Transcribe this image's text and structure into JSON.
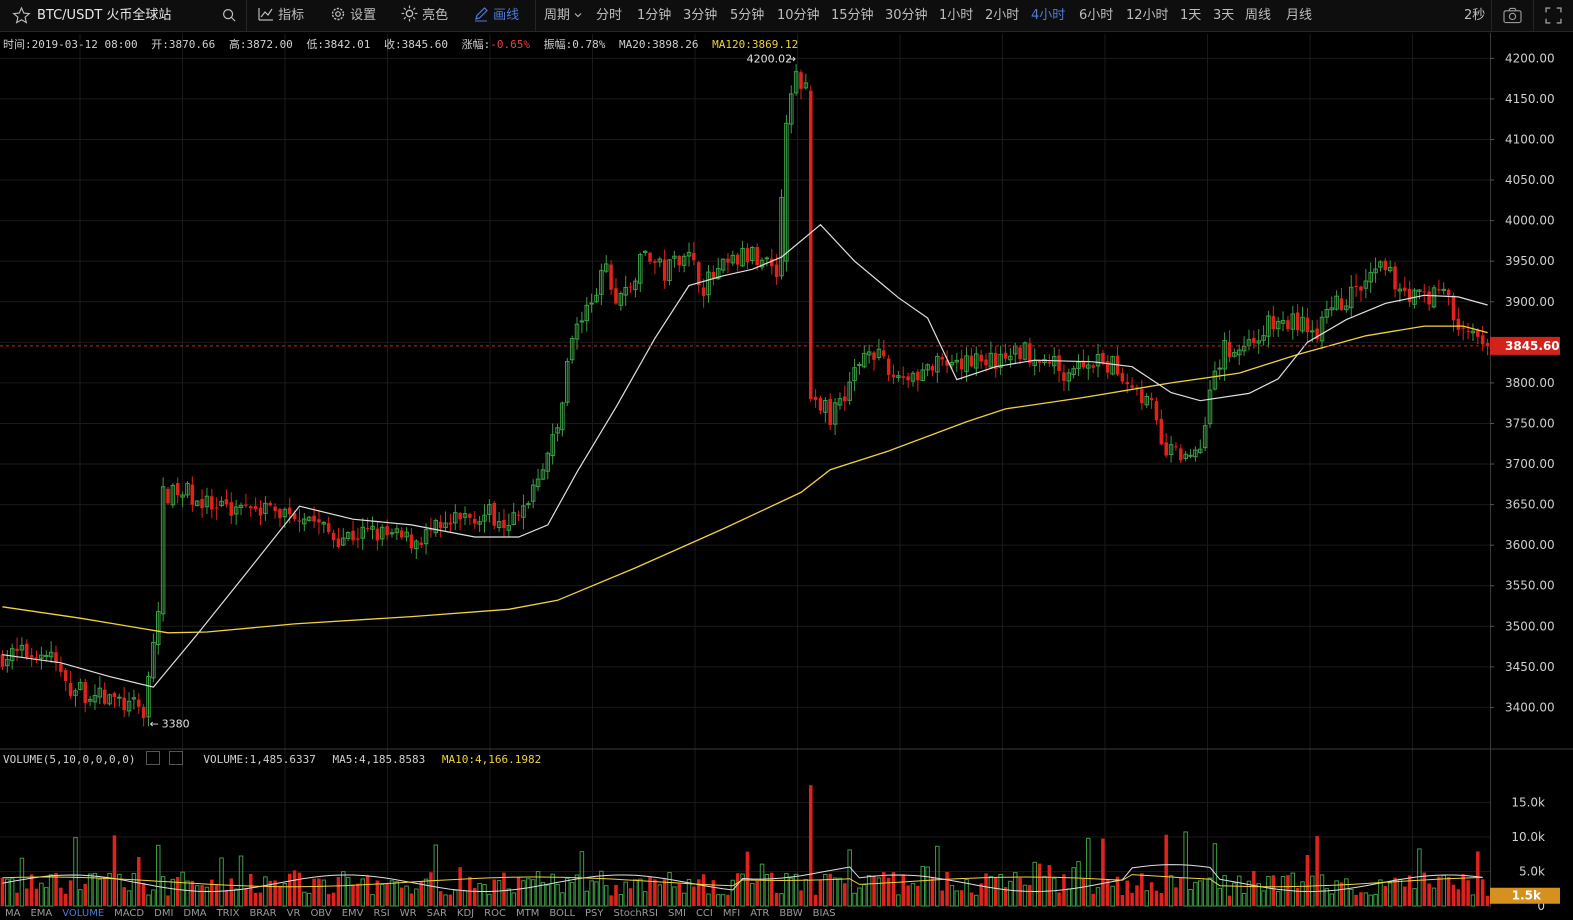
{
  "toolbar": {
    "symbol": "BTC/USDT 火币全球站",
    "indicators_label": "指标",
    "settings_label": "设置",
    "theme_label": "亮色",
    "draw_label": "画线",
    "period_label": "周期",
    "periods": [
      "分时",
      "1分钟",
      "3分钟",
      "5分钟",
      "10分钟",
      "15分钟",
      "30分钟",
      "1小时",
      "2小时",
      "4小时",
      "6小时",
      "12小时",
      "1天",
      "3天",
      "周线",
      "月线"
    ],
    "active_period": "4小时",
    "refresh": "2秒"
  },
  "info": {
    "time": "时间:2019-03-12 08:00",
    "open": "开:3870.66",
    "high": "高:3872.00",
    "low": "低:3842.01",
    "close": "收:3845.60",
    "change_label": "涨幅:",
    "change_value": "-0.65%",
    "amplitude": "振幅:0.78%",
    "ma20": "MA20:3898.26",
    "ma120": "MA120:3869.12"
  },
  "volume_info": {
    "title": "VOLUME(5,10,0,0,0,0)",
    "volume": "VOLUME:1,485.6337",
    "ma5": "MA5:4,185.8583",
    "ma10": "MA10:4,166.1982"
  },
  "indicator_tabs": [
    "MA",
    "EMA",
    "VOLUME",
    "MACD",
    "DMI",
    "DMA",
    "TRIX",
    "BRAR",
    "VR",
    "OBV",
    "EMV",
    "RSI",
    "WR",
    "SAR",
    "KDJ",
    "ROC",
    "MTM",
    "BOLL",
    "PSY",
    "StochRSI",
    "SMI",
    "CCI",
    "MFI",
    "ATR",
    "BBW",
    "BIAS"
  ],
  "active_indicator": "VOLUME",
  "colors": {
    "up": "#3c9d45",
    "down": "#e0221c",
    "ma_white": "#e0e0e0",
    "ma_yellow": "#f0d23c",
    "accent_blue": "#4d7bd6",
    "price_tag": "#d1231c",
    "vol_tag": "#d6901e"
  },
  "chart_data": {
    "type": "candlestick",
    "price_axis": {
      "min": 3350,
      "max": 4230,
      "ticks": [
        "4200.00",
        "4150.00",
        "4100.00",
        "4050.00",
        "4000.00",
        "3950.00",
        "3900.00",
        "3850.00",
        "3800.00",
        "3750.00",
        "3700.00",
        "3650.00",
        "3600.00",
        "3550.00",
        "3500.00",
        "3450.00",
        "3400.00"
      ]
    },
    "last_price": 3845.6,
    "last_price_label": "3845.60",
    "high_marker": "4200.02",
    "low_marker": "3380",
    "volume_axis": {
      "max": 20000,
      "ticks": [
        "15.0k",
        "10.0k",
        "5.0k",
        "0"
      ]
    },
    "last_volume_label": "1.5k",
    "anchors": [
      {
        "i": 0,
        "p": 3463
      },
      {
        "i": 8,
        "p": 3468
      },
      {
        "i": 10,
        "p": 3465
      },
      {
        "i": 13,
        "p": 3425
      },
      {
        "i": 22,
        "p": 3410
      },
      {
        "i": 29,
        "p": 3395
      },
      {
        "i": 30,
        "p": 3438
      },
      {
        "i": 32,
        "p": 3520
      },
      {
        "i": 33,
        "p": 3660
      },
      {
        "i": 38,
        "p": 3665
      },
      {
        "i": 44,
        "p": 3640
      },
      {
        "i": 51,
        "p": 3655
      },
      {
        "i": 56,
        "p": 3640
      },
      {
        "i": 62,
        "p": 3640
      },
      {
        "i": 68,
        "p": 3610
      },
      {
        "i": 76,
        "p": 3615
      },
      {
        "i": 84,
        "p": 3605
      },
      {
        "i": 90,
        "p": 3620
      },
      {
        "i": 98,
        "p": 3640
      },
      {
        "i": 106,
        "p": 3630
      },
      {
        "i": 110,
        "p": 3690
      },
      {
        "i": 114,
        "p": 3740
      },
      {
        "i": 116,
        "p": 3830
      },
      {
        "i": 118,
        "p": 3870
      },
      {
        "i": 121,
        "p": 3900
      },
      {
        "i": 124,
        "p": 3940
      },
      {
        "i": 126,
        "p": 3900
      },
      {
        "i": 129,
        "p": 3920
      },
      {
        "i": 132,
        "p": 3960
      },
      {
        "i": 136,
        "p": 3935
      },
      {
        "i": 140,
        "p": 3965
      },
      {
        "i": 144,
        "p": 3920
      },
      {
        "i": 148,
        "p": 3940
      },
      {
        "i": 152,
        "p": 3955
      },
      {
        "i": 156,
        "p": 3955
      },
      {
        "i": 159,
        "p": 3940
      },
      {
        "i": 161,
        "p": 4120
      },
      {
        "i": 163,
        "p": 4180
      },
      {
        "i": 166,
        "p": 4150
      },
      {
        "i": 167,
        "p": 3780
      },
      {
        "i": 170,
        "p": 3760
      },
      {
        "i": 174,
        "p": 3800
      },
      {
        "i": 178,
        "p": 3850
      },
      {
        "i": 182,
        "p": 3810
      },
      {
        "i": 186,
        "p": 3810
      },
      {
        "i": 192,
        "p": 3820
      },
      {
        "i": 196,
        "p": 3815
      },
      {
        "i": 200,
        "p": 3835
      },
      {
        "i": 204,
        "p": 3825
      },
      {
        "i": 210,
        "p": 3840
      },
      {
        "i": 214,
        "p": 3830
      },
      {
        "i": 218,
        "p": 3815
      },
      {
        "i": 222,
        "p": 3825
      },
      {
        "i": 228,
        "p": 3820
      },
      {
        "i": 232,
        "p": 3800
      },
      {
        "i": 236,
        "p": 3770
      },
      {
        "i": 238,
        "p": 3720
      },
      {
        "i": 242,
        "p": 3710
      },
      {
        "i": 246,
        "p": 3720
      },
      {
        "i": 248,
        "p": 3800
      },
      {
        "i": 251,
        "p": 3840
      },
      {
        "i": 256,
        "p": 3850
      },
      {
        "i": 260,
        "p": 3870
      },
      {
        "i": 266,
        "p": 3875
      },
      {
        "i": 270,
        "p": 3865
      },
      {
        "i": 274,
        "p": 3895
      },
      {
        "i": 276,
        "p": 3905
      },
      {
        "i": 280,
        "p": 3920
      },
      {
        "i": 283,
        "p": 3940
      },
      {
        "i": 286,
        "p": 3925
      },
      {
        "i": 290,
        "p": 3905
      },
      {
        "i": 294,
        "p": 3910
      },
      {
        "i": 296,
        "p": 3920
      },
      {
        "i": 298,
        "p": 3880
      },
      {
        "i": 301,
        "p": 3860
      },
      {
        "i": 304,
        "p": 3848
      }
    ],
    "ma_white": [
      {
        "i": 0,
        "p": 3465
      },
      {
        "i": 12,
        "p": 3455
      },
      {
        "i": 22,
        "p": 3438
      },
      {
        "i": 31,
        "p": 3425
      },
      {
        "i": 40,
        "p": 3490
      },
      {
        "i": 50,
        "p": 3565
      },
      {
        "i": 61,
        "p": 3648
      },
      {
        "i": 72,
        "p": 3632
      },
      {
        "i": 84,
        "p": 3625
      },
      {
        "i": 97,
        "p": 3610
      },
      {
        "i": 106,
        "p": 3610
      },
      {
        "i": 112,
        "p": 3625
      },
      {
        "i": 118,
        "p": 3690
      },
      {
        "i": 126,
        "p": 3770
      },
      {
        "i": 134,
        "p": 3855
      },
      {
        "i": 141,
        "p": 3920
      },
      {
        "i": 148,
        "p": 3932
      },
      {
        "i": 154,
        "p": 3940
      },
      {
        "i": 160,
        "p": 3955
      },
      {
        "i": 168,
        "p": 3995
      },
      {
        "i": 175,
        "p": 3950
      },
      {
        "i": 184,
        "p": 3905
      },
      {
        "i": 190,
        "p": 3880
      },
      {
        "i": 196,
        "p": 3804
      },
      {
        "i": 204,
        "p": 3820
      },
      {
        "i": 212,
        "p": 3828
      },
      {
        "i": 224,
        "p": 3826
      },
      {
        "i": 232,
        "p": 3820
      },
      {
        "i": 240,
        "p": 3788
      },
      {
        "i": 246,
        "p": 3778
      },
      {
        "i": 256,
        "p": 3787
      },
      {
        "i": 262,
        "p": 3805
      },
      {
        "i": 268,
        "p": 3850
      },
      {
        "i": 276,
        "p": 3878
      },
      {
        "i": 284,
        "p": 3898
      },
      {
        "i": 292,
        "p": 3908
      },
      {
        "i": 299,
        "p": 3906
      },
      {
        "i": 305,
        "p": 3896
      }
    ],
    "ma_yellow": [
      {
        "i": 0,
        "p": 3524
      },
      {
        "i": 16,
        "p": 3510
      },
      {
        "i": 34,
        "p": 3492
      },
      {
        "i": 42,
        "p": 3493
      },
      {
        "i": 60,
        "p": 3503
      },
      {
        "i": 84,
        "p": 3512
      },
      {
        "i": 104,
        "p": 3521
      },
      {
        "i": 114,
        "p": 3532
      },
      {
        "i": 130,
        "p": 3572
      },
      {
        "i": 148,
        "p": 3620
      },
      {
        "i": 164,
        "p": 3665
      },
      {
        "i": 170,
        "p": 3693
      },
      {
        "i": 182,
        "p": 3716
      },
      {
        "i": 198,
        "p": 3752
      },
      {
        "i": 206,
        "p": 3768
      },
      {
        "i": 222,
        "p": 3782
      },
      {
        "i": 240,
        "p": 3800
      },
      {
        "i": 254,
        "p": 3812
      },
      {
        "i": 266,
        "p": 3835
      },
      {
        "i": 280,
        "p": 3858
      },
      {
        "i": 292,
        "p": 3870
      },
      {
        "i": 300,
        "p": 3870
      },
      {
        "i": 305,
        "p": 3862
      }
    ]
  }
}
